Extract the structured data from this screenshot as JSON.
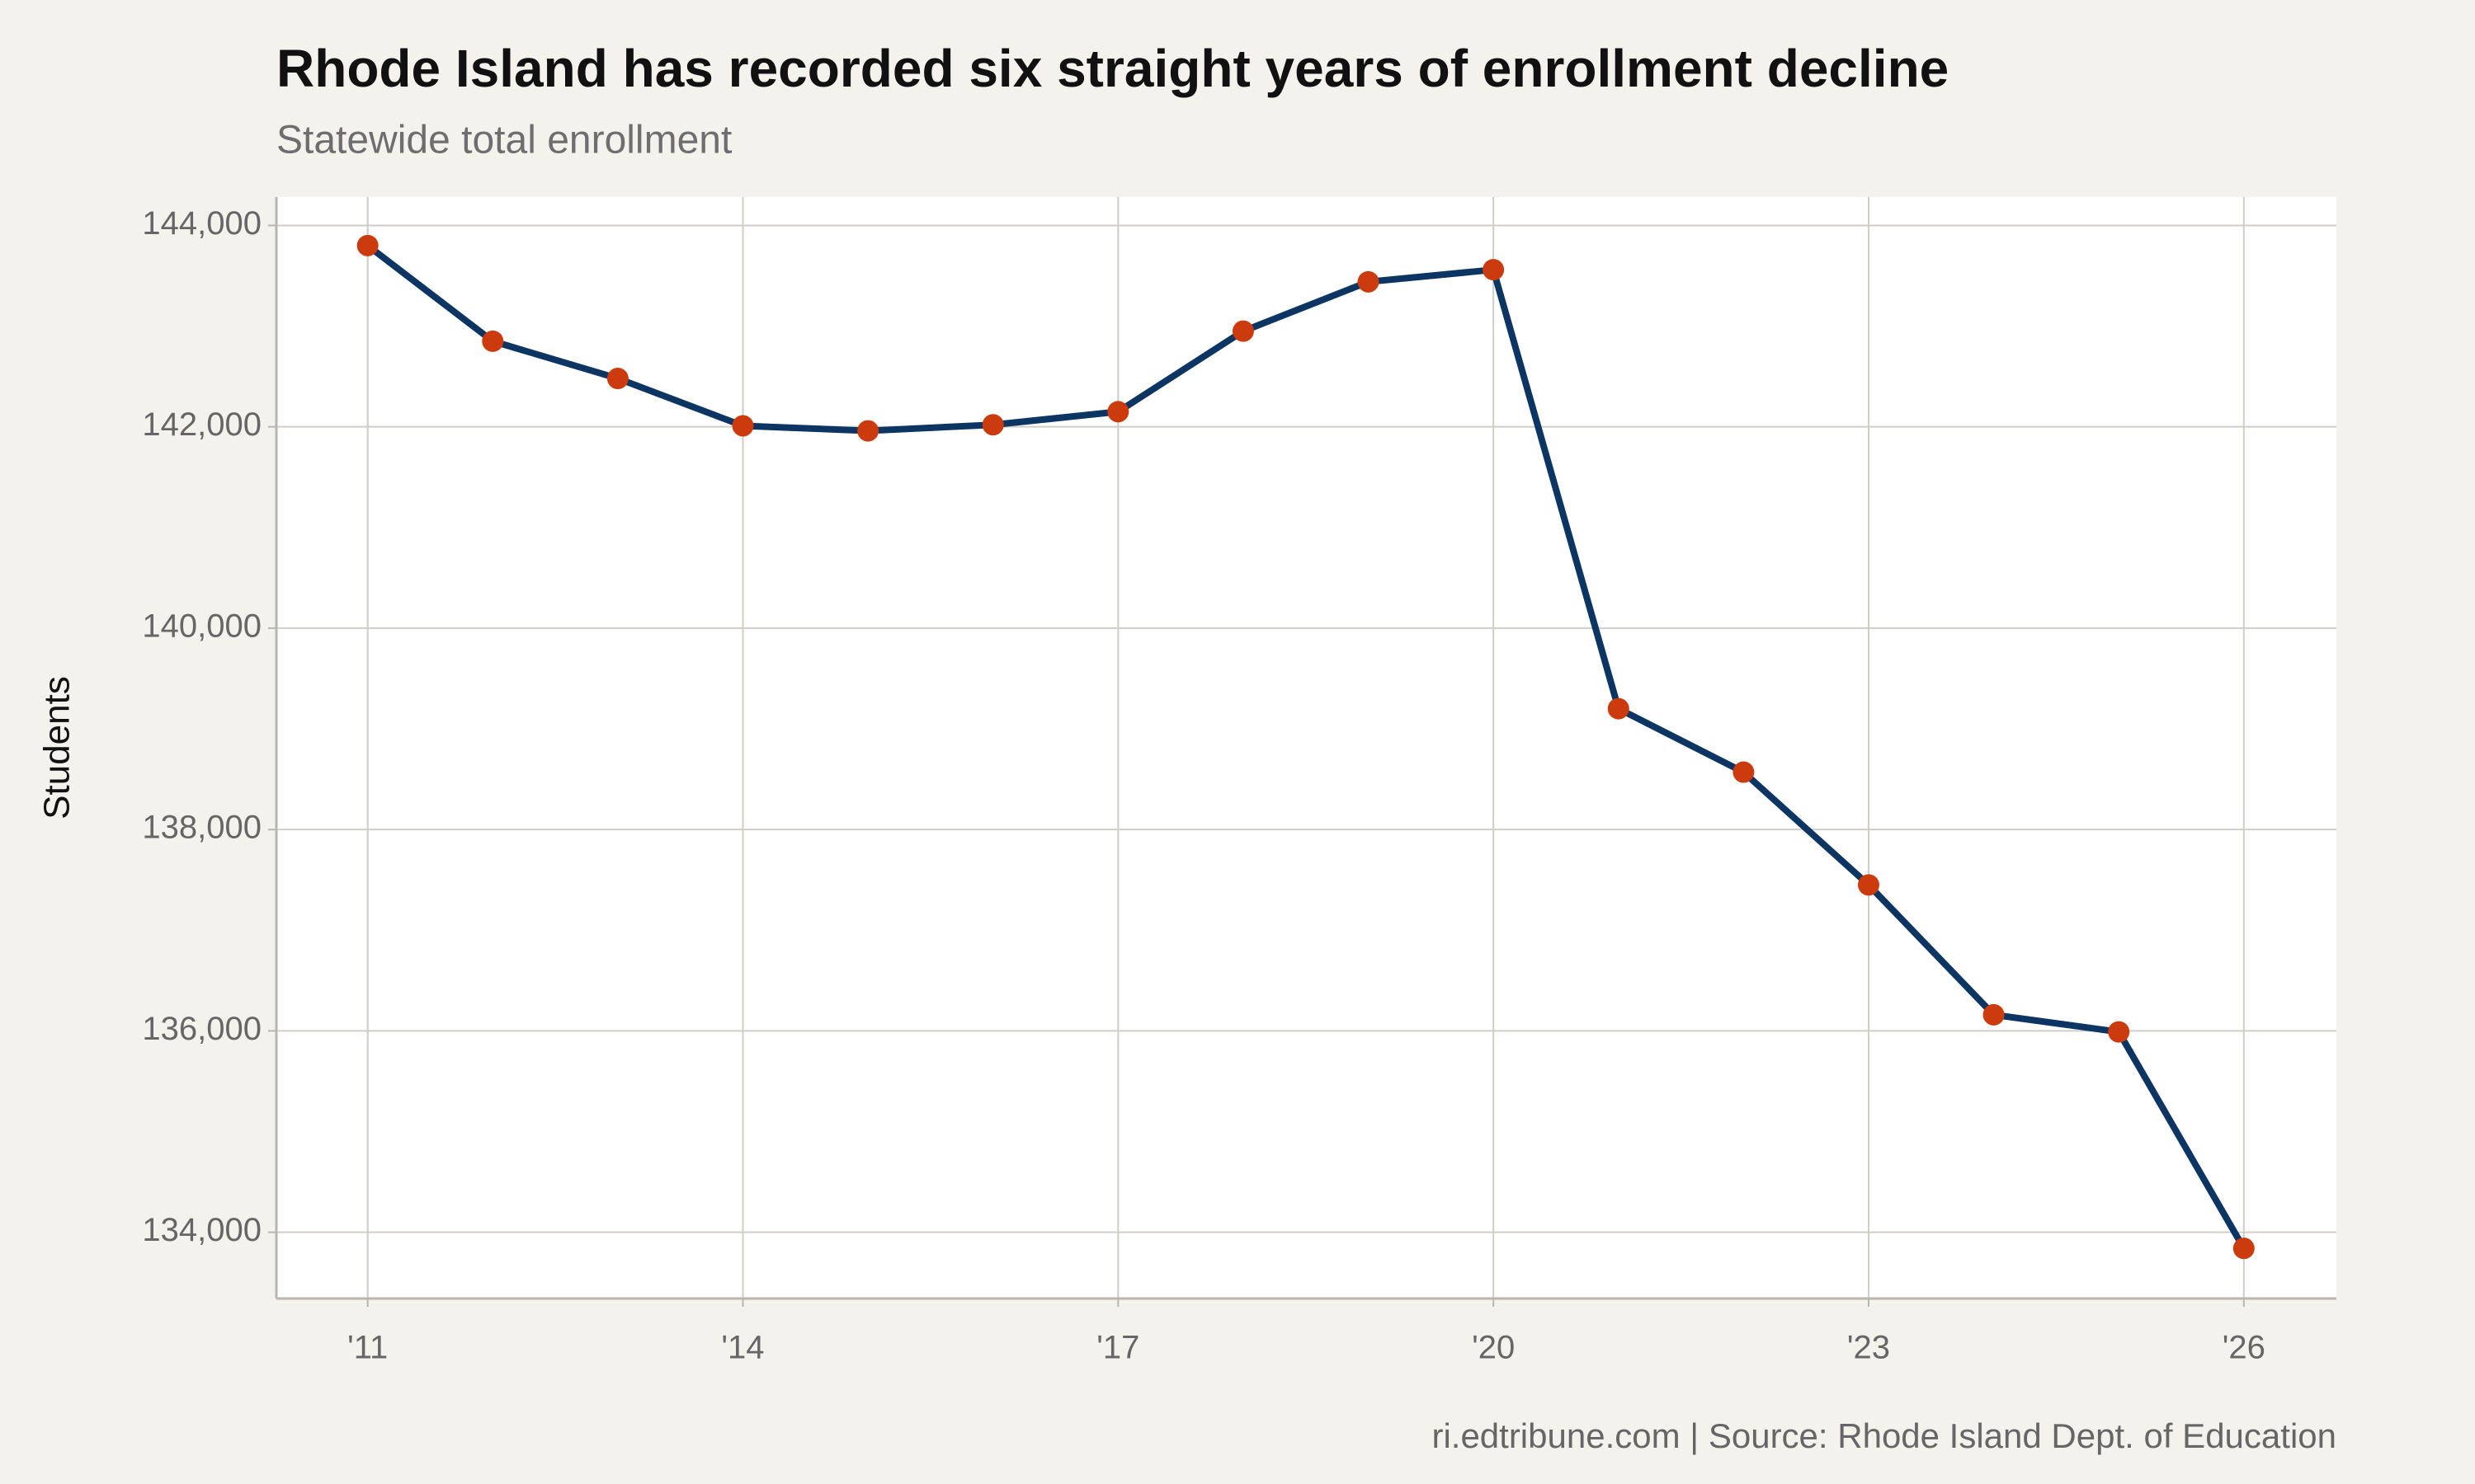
{
  "chart_data": {
    "type": "line",
    "title": "Rhode Island has recorded six straight years of enrollment decline",
    "subtitle": "Statewide total enrollment",
    "y_label": "Students",
    "caption": "ri.edtribune.com | Source: Rhode Island Dept. of Education",
    "x": [
      2011,
      2012,
      2013,
      2014,
      2015,
      2016,
      2017,
      2018,
      2019,
      2020,
      2021,
      2022,
      2023,
      2024,
      2025,
      2026
    ],
    "series": [
      {
        "name": "Enrollment",
        "color": "#0d3563",
        "marker_color": "#cc3b0e",
        "values": [
          143800,
          142850,
          142480,
          142010,
          141960,
          142020,
          142150,
          142950,
          143440,
          143560,
          139200,
          138570,
          137450,
          136160,
          135990,
          133840
        ]
      }
    ],
    "xlim": [
      2010.27,
      2026.74
    ],
    "xticks": [
      {
        "value": 2011,
        "label": "'11"
      },
      {
        "value": 2014,
        "label": "'14"
      },
      {
        "value": 2017,
        "label": "'17"
      },
      {
        "value": 2020,
        "label": "'20"
      },
      {
        "value": 2023,
        "label": "'23"
      },
      {
        "value": 2026,
        "label": "'26"
      }
    ],
    "ylim": [
      133342,
      144282
    ],
    "yticks": [
      {
        "value": 134000,
        "label": "134,000"
      },
      {
        "value": 136000,
        "label": "136,000"
      },
      {
        "value": 138000,
        "label": "138,000"
      },
      {
        "value": 140000,
        "label": "140,000"
      },
      {
        "value": 142000,
        "label": "142,000"
      },
      {
        "value": 144000,
        "label": "144,000"
      }
    ],
    "grid": true
  }
}
